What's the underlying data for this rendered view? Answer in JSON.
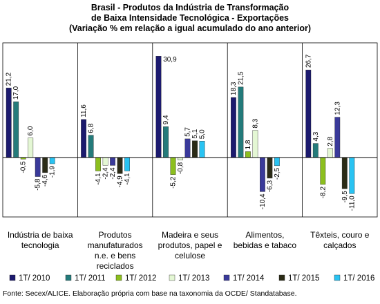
{
  "chart_data": {
    "type": "bar",
    "title": [
      "Brasil - Produtos da Indústria de Transformação",
      "de Baixa Intensidade Tecnológica - Exportações",
      "(Variação % em relação a igual acumulado do ano anterior)"
    ],
    "categories": [
      [
        "Indústria de baixa",
        "tecnologia"
      ],
      [
        "Produtos",
        "manufaturados",
        "n.e. e bens",
        "reciclados"
      ],
      [
        "Madeira e seus",
        "produtos, papel e",
        "celulose"
      ],
      [
        "Alimentos,",
        "bebidas e tabaco"
      ],
      [
        "Têxteis, couro e",
        "calçados"
      ]
    ],
    "series": [
      {
        "name": "1T/ 2010",
        "color": "#1c1a6e",
        "values": [
          21.2,
          11.6,
          30.9,
          18.3,
          26.7
        ],
        "labels": [
          "21,2",
          "11,6",
          "30,9",
          "18,3",
          "26,7"
        ]
      },
      {
        "name": "1T/ 2011",
        "color": "#247b7b",
        "values": [
          17.0,
          6.8,
          9.4,
          21.5,
          4.3
        ],
        "labels": [
          "17,0",
          "6,8",
          "9,4",
          "21,5",
          "4,3"
        ]
      },
      {
        "name": "1T/ 2012",
        "color": "#8cbf1e",
        "values": [
          -0.5,
          -4.1,
          -5.2,
          1.8,
          -8.2
        ],
        "labels": [
          "-0,5",
          "-4,1",
          "-5,2",
          "1,8",
          "-8,2"
        ]
      },
      {
        "name": "1T/ 2013",
        "color": "#e4f7d4",
        "values": [
          6.0,
          -2.4,
          -0.8,
          8.3,
          2.8
        ],
        "labels": [
          "6,0",
          "-2,4",
          "-0,8",
          "8,3",
          "2,8"
        ]
      },
      {
        "name": "1T/ 2014",
        "color": "#3a3a9a",
        "values": [
          -5.8,
          -2.4,
          5.7,
          -10.4,
          12.3
        ],
        "labels": [
          "-5,8",
          "-2,4",
          "5,7",
          "-10,4",
          "12,3"
        ]
      },
      {
        "name": "1T/ 2015",
        "color": "#2b2b16",
        "values": [
          -4.6,
          -4.9,
          5.1,
          -6.3,
          -9.5
        ],
        "labels": [
          "-4,6",
          "-4,9",
          "5,1",
          "-6,3",
          "-9,5"
        ]
      },
      {
        "name": "1T/ 2016",
        "color": "#29c3f2",
        "values": [
          -1.9,
          -4.1,
          5.0,
          -2.5,
          -11.0
        ],
        "labels": [
          "-1,9",
          "-4,1",
          "5,0",
          "-2,5",
          "-11,0"
        ]
      }
    ],
    "ylim": [
      -15,
      35
    ],
    "grid": false,
    "legend_position": "bottom",
    "source": "Fonte: Secex/ALICE. Elaboração própria com base na taxonomia da OCDE/ Standatabase."
  }
}
